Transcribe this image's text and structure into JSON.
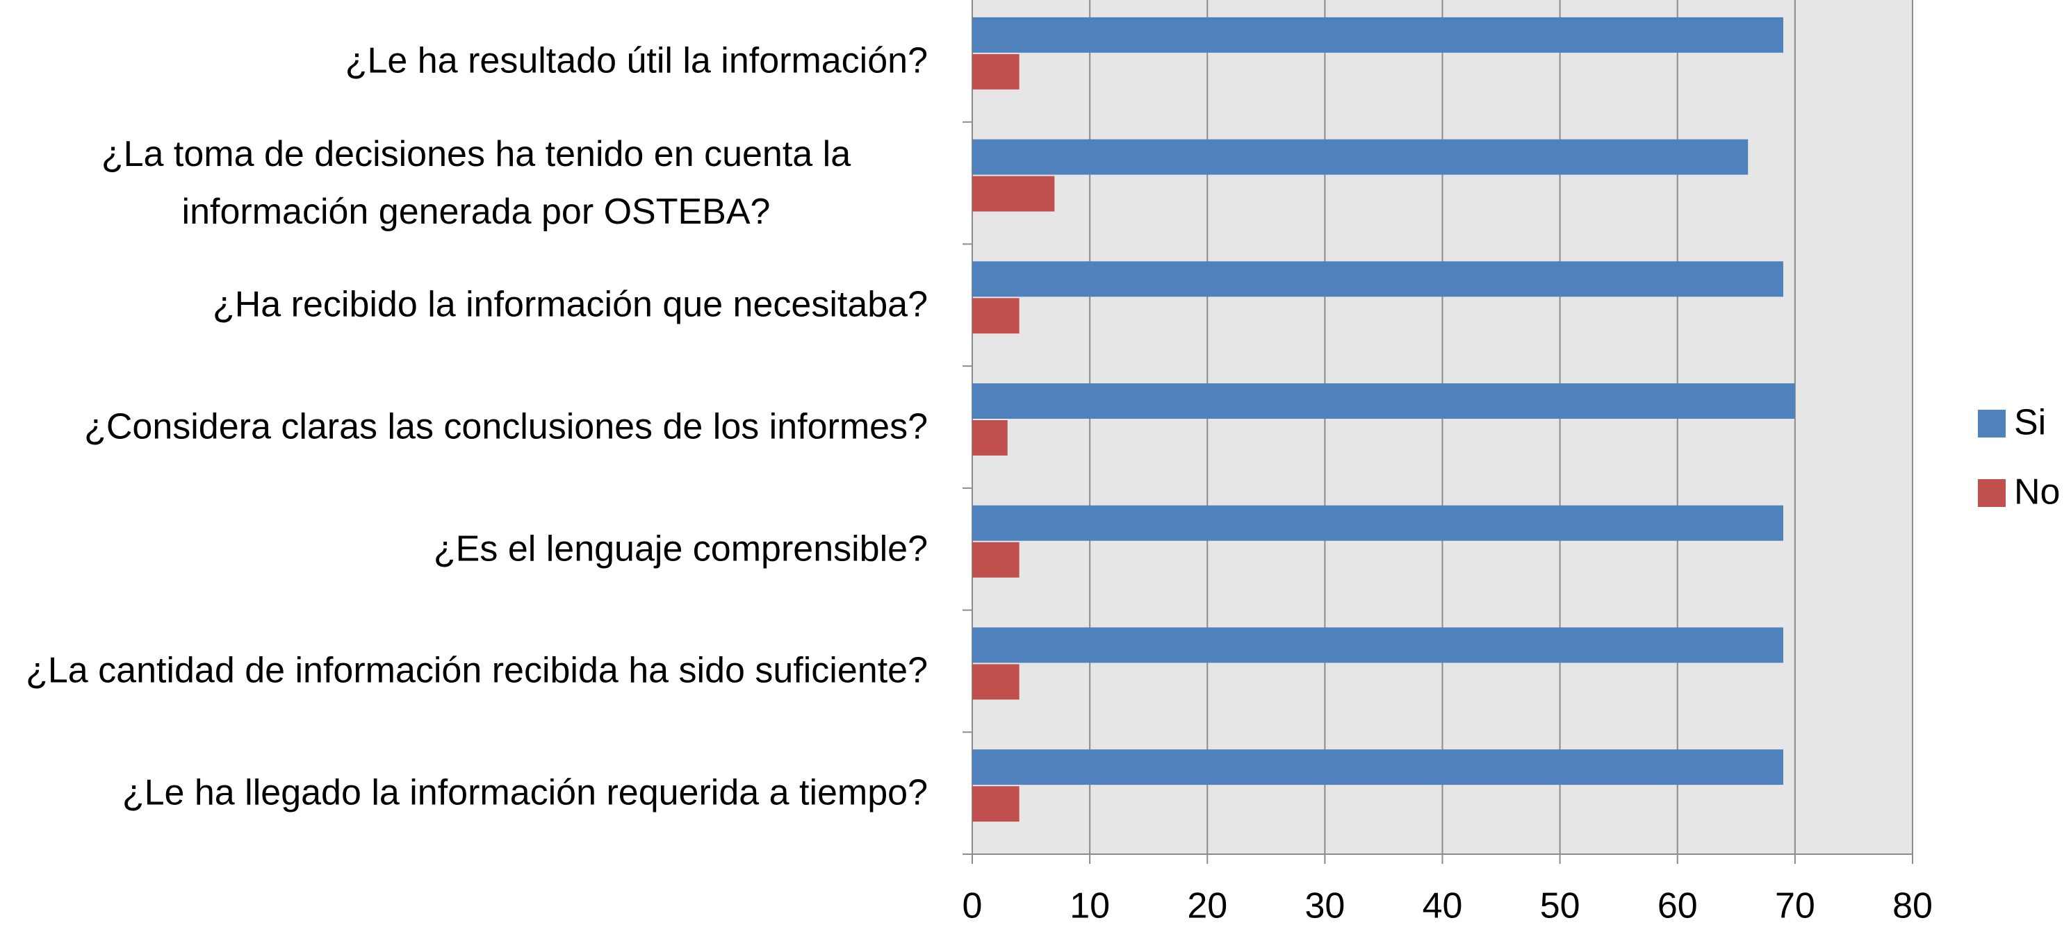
{
  "chart_data": {
    "type": "hbar",
    "categories": [
      "¿Le ha resultado útil la información?",
      "¿La toma de decisiones ha tenido en cuenta la información generada por OSTEBA?",
      "¿Ha recibido la información que necesitaba?",
      "¿Considera claras las conclusiones de los informes?",
      "¿Es el lenguaje comprensible?",
      "¿La cantidad de información recibida ha sido suficiente?",
      "¿Le ha llegado la información requerida a tiempo?"
    ],
    "series": [
      {
        "name": "Si",
        "color": "#4f81bd",
        "values": [
          69,
          66,
          69,
          70,
          69,
          69,
          69
        ]
      },
      {
        "name": "No",
        "color": "#c0504d",
        "values": [
          4,
          7,
          4,
          3,
          4,
          4,
          4
        ]
      }
    ],
    "xlim": [
      0,
      80
    ],
    "xticks": [
      0,
      10,
      20,
      30,
      40,
      50,
      60,
      70,
      80
    ],
    "grid": true,
    "legend": "right"
  }
}
